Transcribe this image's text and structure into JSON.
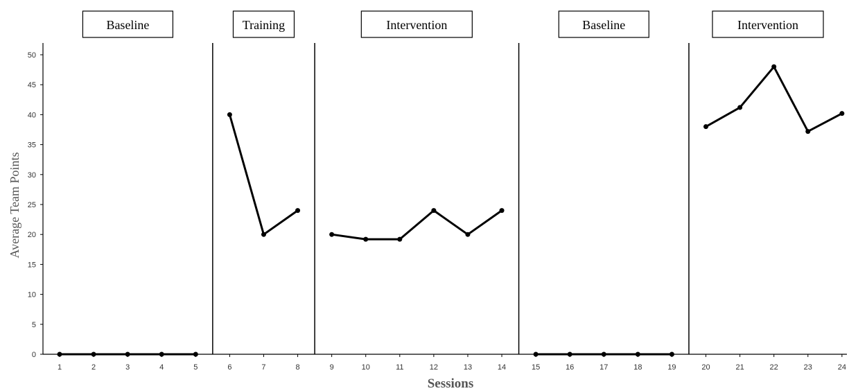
{
  "chart_data": {
    "type": "line",
    "title": "",
    "xlabel": "Sessions",
    "ylabel": "Average Team Points",
    "ylim": [
      0,
      50
    ],
    "yticks": [
      0,
      5,
      10,
      15,
      20,
      25,
      30,
      35,
      40,
      45,
      50
    ],
    "xlim": [
      1,
      24
    ],
    "grid": false,
    "phases": [
      {
        "label": "Baseline",
        "start": 1,
        "end": 5
      },
      {
        "label": "Training",
        "start": 6,
        "end": 8
      },
      {
        "label": "Intervention",
        "start": 9,
        "end": 14
      },
      {
        "label": "Baseline",
        "start": 15,
        "end": 19
      },
      {
        "label": "Intervention",
        "start": 20,
        "end": 24
      }
    ],
    "series": [
      {
        "values": [
          [
            1,
            0
          ],
          [
            2,
            0
          ],
          [
            3,
            0
          ],
          [
            4,
            0
          ],
          [
            5,
            0
          ],
          [
            6,
            40
          ],
          [
            7,
            20
          ],
          [
            8,
            24
          ],
          [
            9,
            20
          ],
          [
            10,
            19.2
          ],
          [
            11,
            19.2
          ],
          [
            12,
            24
          ],
          [
            13,
            20
          ],
          [
            14,
            24
          ],
          [
            15,
            0
          ],
          [
            16,
            0
          ],
          [
            17,
            0
          ],
          [
            18,
            0
          ],
          [
            19,
            0
          ],
          [
            20,
            38
          ],
          [
            21,
            41.2
          ],
          [
            22,
            48
          ],
          [
            23,
            37.2
          ],
          [
            24,
            40.2
          ]
        ]
      }
    ]
  }
}
